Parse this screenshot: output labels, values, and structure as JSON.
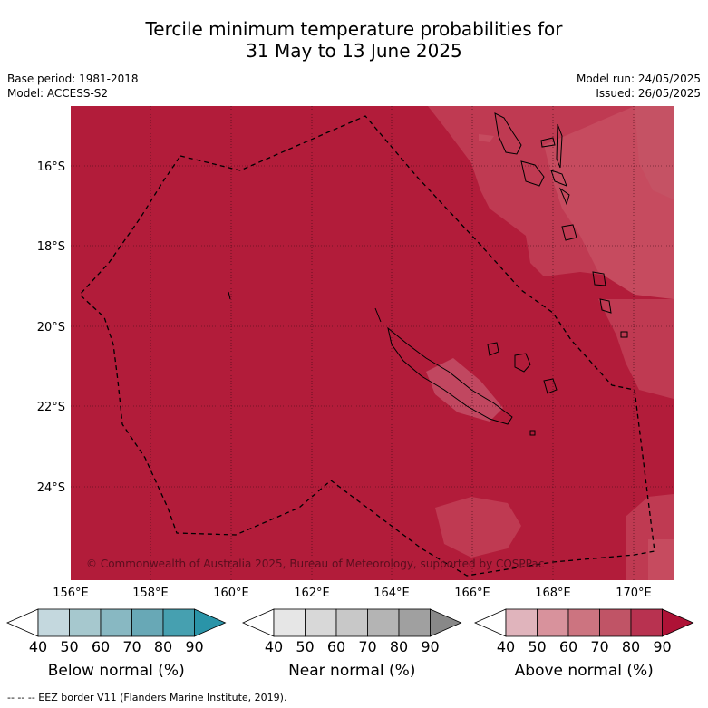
{
  "title_line1": "Tercile minimum temperature probabilities for",
  "title_line2": "31 May to 13 June 2025",
  "base_period": "Base period: 1981-2018",
  "model": "Model: ACCESS-S2",
  "model_run": "Model run: 24/05/2025",
  "issued": "Issued: 26/05/2025",
  "map": {
    "lat_labels": [
      "16°S",
      "18°S",
      "20°S",
      "22°S",
      "24°S"
    ],
    "lon_labels": [
      "156°E",
      "158°E",
      "160°E",
      "162°E",
      "164°E",
      "166°E",
      "168°E",
      "170°E"
    ],
    "copyright": "© Commonwealth of Australia 2025, Bureau of Meteorology, supported by COSPPac",
    "fill_color": "#b21c3a"
  },
  "colorbars": [
    {
      "label": "Below normal (%)",
      "ticks": [
        "40",
        "50",
        "60",
        "70",
        "80",
        "90"
      ],
      "colors": [
        "#ffffff",
        "#c4d8de",
        "#a6c8ce",
        "#88b8c2",
        "#68a8b6",
        "#46a0b0",
        "#2a94a8"
      ]
    },
    {
      "label": "Near normal (%)",
      "ticks": [
        "40",
        "50",
        "60",
        "70",
        "80",
        "90"
      ],
      "colors": [
        "#ffffff",
        "#e6e6e6",
        "#d8d8d8",
        "#c8c8c8",
        "#b4b4b4",
        "#a0a0a0",
        "#888888"
      ]
    },
    {
      "label": "Above normal (%)",
      "ticks": [
        "40",
        "50",
        "60",
        "70",
        "80",
        "90"
      ],
      "colors": [
        "#ffffff",
        "#e0b4bc",
        "#d8929c",
        "#cc7480",
        "#c05466",
        "#b83250",
        "#ae1236"
      ]
    }
  ],
  "footer": "--  --  -- EEZ border V11 (Flanders Marine Institute, 2019)."
}
